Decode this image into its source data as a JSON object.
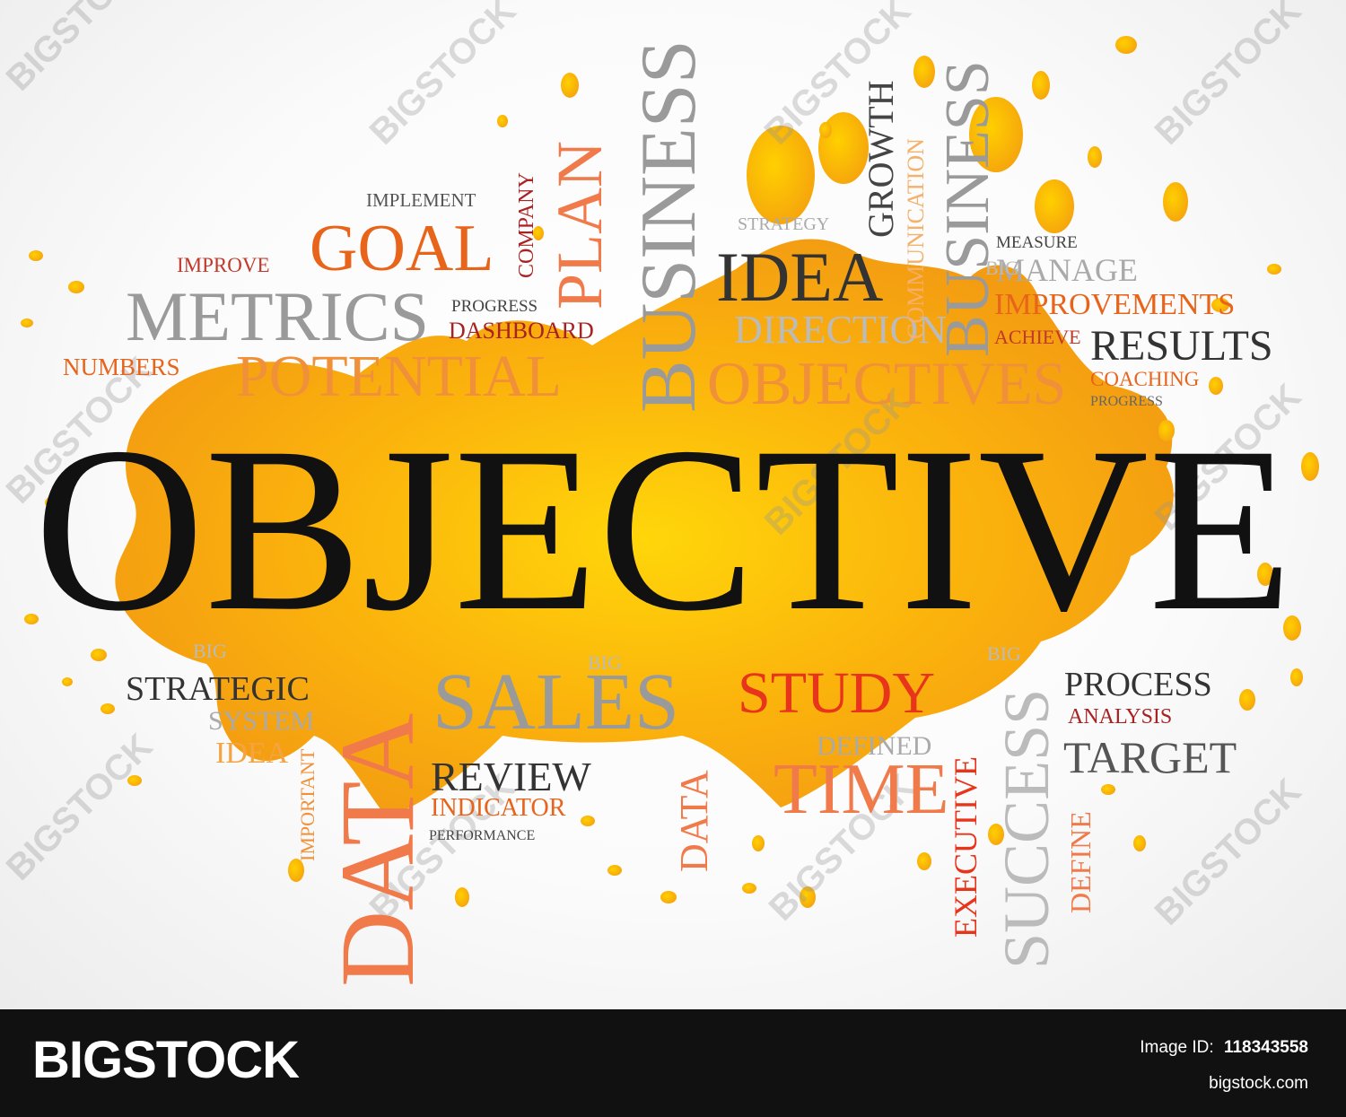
{
  "wordcloud": {
    "main_word": "OBJECTIVE",
    "words": [
      {
        "text": "IMPLEMENT",
        "color": "#555555"
      },
      {
        "text": "GOAL",
        "color": "#e8641b"
      },
      {
        "text": "IMPROVE",
        "color": "#c0392b"
      },
      {
        "text": "METRICS",
        "color": "#9a9a9a"
      },
      {
        "text": "PROGRESS",
        "color": "#444444"
      },
      {
        "text": "DASHBOARD",
        "color": "#a82222"
      },
      {
        "text": "NUMBERS",
        "color": "#e8641b"
      },
      {
        "text": "POTENTIAL",
        "color": "#f0913a"
      },
      {
        "text": "COMPANY",
        "color": "#a82222"
      },
      {
        "text": "PLAN",
        "color": "#f07a4a"
      },
      {
        "text": "BUSINESS",
        "color": "#9a9a9a"
      },
      {
        "text": "STRATEGY",
        "color": "#aaaaaa"
      },
      {
        "text": "IDEA",
        "color": "#333333"
      },
      {
        "text": "DIRECTION",
        "color": "#bbbbbb"
      },
      {
        "text": "OBJECTIVES",
        "color": "#f0913a"
      },
      {
        "text": "GROWTH",
        "color": "#444444"
      },
      {
        "text": "COMMUNICATION",
        "color": "#f5b06a"
      },
      {
        "text": "BUSINESS",
        "color": "#9a9a9a"
      },
      {
        "text": "MEASURE",
        "color": "#444444"
      },
      {
        "text": "MANAGE",
        "color": "#aaaaaa"
      },
      {
        "text": "IMPROVEMENTS",
        "color": "#e8641b"
      },
      {
        "text": "ACHIEVE",
        "color": "#c0392b"
      },
      {
        "text": "RESULTS",
        "color": "#333333"
      },
      {
        "text": "COACHING",
        "color": "#e8641b"
      },
      {
        "text": "PROGRESS",
        "color": "#666666"
      },
      {
        "text": "STRATEGIC",
        "color": "#333333"
      },
      {
        "text": "SYSTEM",
        "color": "#aaaaaa"
      },
      {
        "text": "IDEA",
        "color": "#f5a442"
      },
      {
        "text": "IMPORTANT",
        "color": "#f0913a"
      },
      {
        "text": "DATA",
        "color": "#f07a4a"
      },
      {
        "text": "SALES",
        "color": "#9a9a9a"
      },
      {
        "text": "REVIEW",
        "color": "#333333"
      },
      {
        "text": "INDICATOR",
        "color": "#e8641b"
      },
      {
        "text": "PERFORMANCE",
        "color": "#444444"
      },
      {
        "text": "DATA",
        "color": "#f07a4a"
      },
      {
        "text": "STUDY",
        "color": "#e8341b"
      },
      {
        "text": "DEFINED",
        "color": "#aaaaaa"
      },
      {
        "text": "TIME",
        "color": "#f07a4a"
      },
      {
        "text": "EXECUTIVE",
        "color": "#e8341b"
      },
      {
        "text": "SUCCESS",
        "color": "#bbbbbb"
      },
      {
        "text": "PROCESS",
        "color": "#333333"
      },
      {
        "text": "ANALYSIS",
        "color": "#a82222"
      },
      {
        "text": "TARGET",
        "color": "#555555"
      },
      {
        "text": "DEFINE",
        "color": "#f07a4a"
      },
      {
        "text": "BIG",
        "color": "#bbbbbb"
      },
      {
        "text": "BIG",
        "color": "#bbbbbb"
      },
      {
        "text": "BIG",
        "color": "#bbbbbb"
      },
      {
        "text": "BIG",
        "color": "#bbbbbb"
      }
    ]
  },
  "watermark": {
    "text": "BIGSTOCK"
  },
  "footer": {
    "logo": "BIGSTOCK",
    "image_id_label": "Image ID:",
    "image_id": "118343558",
    "site": "bigstock.com"
  },
  "colors": {
    "splash_dark": "#f39c12",
    "splash_light": "#ffd000",
    "footer_bg": "#111111"
  }
}
